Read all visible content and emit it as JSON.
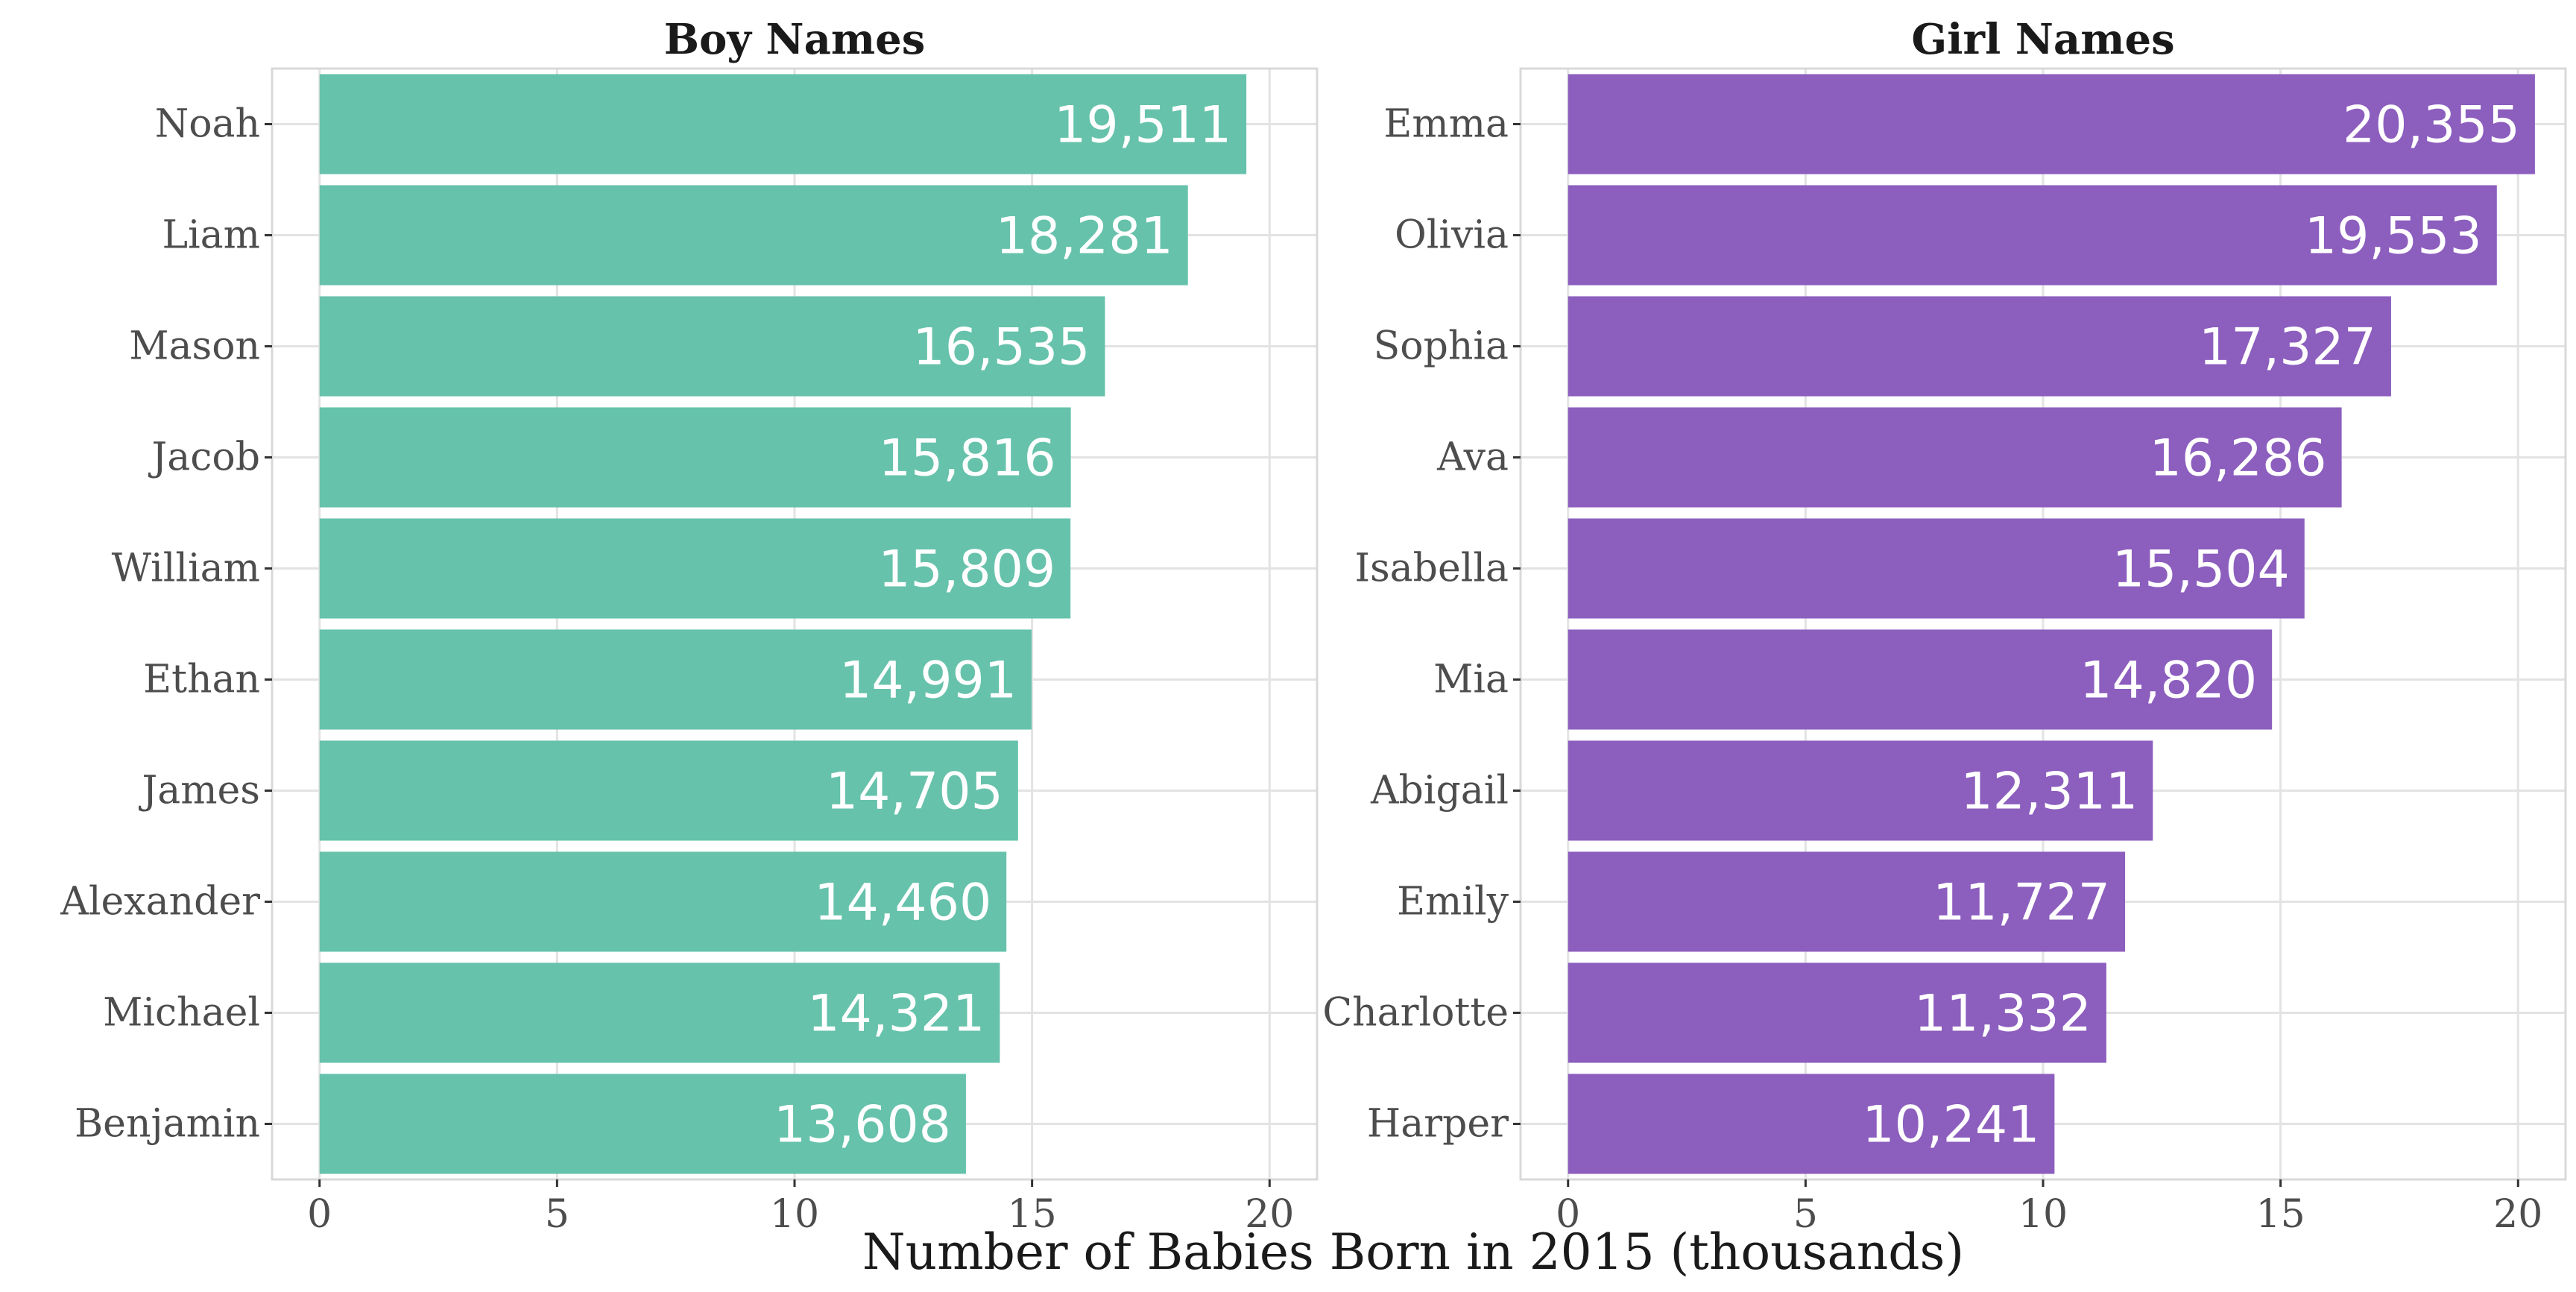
{
  "chart_data": {
    "type": "bar",
    "orientation": "horizontal",
    "xlabel": "Number of Babies Born in 2015 (thousands)",
    "xlim": [
      -1,
      21
    ],
    "xticks": [
      0,
      5,
      10,
      15,
      20
    ],
    "grid": true,
    "panels": [
      {
        "title": "Boy Names",
        "color": "#66C2AB",
        "categories": [
          "Noah",
          "Liam",
          "Mason",
          "Jacob",
          "William",
          "Ethan",
          "James",
          "Alexander",
          "Michael",
          "Benjamin"
        ],
        "values": [
          19.511,
          18.281,
          16.535,
          15.816,
          15.809,
          14.991,
          14.705,
          14.46,
          14.321,
          13.608
        ],
        "labels": [
          "19,511",
          "18,281",
          "16,535",
          "15,816",
          "15,809",
          "14,991",
          "14,705",
          "14,460",
          "14,321",
          "13,608"
        ]
      },
      {
        "title": "Girl Names",
        "color": "#8C5EBE",
        "categories": [
          "Emma",
          "Olivia",
          "Sophia",
          "Ava",
          "Isabella",
          "Mia",
          "Abigail",
          "Emily",
          "Charlotte",
          "Harper"
        ],
        "values": [
          20.355,
          19.553,
          17.327,
          16.286,
          15.504,
          14.82,
          12.311,
          11.727,
          11.332,
          10.241
        ],
        "labels": [
          "20,355",
          "19,553",
          "17,327",
          "16,286",
          "15,504",
          "14,820",
          "12,311",
          "11,727",
          "11,332",
          "10,241"
        ]
      }
    ]
  }
}
